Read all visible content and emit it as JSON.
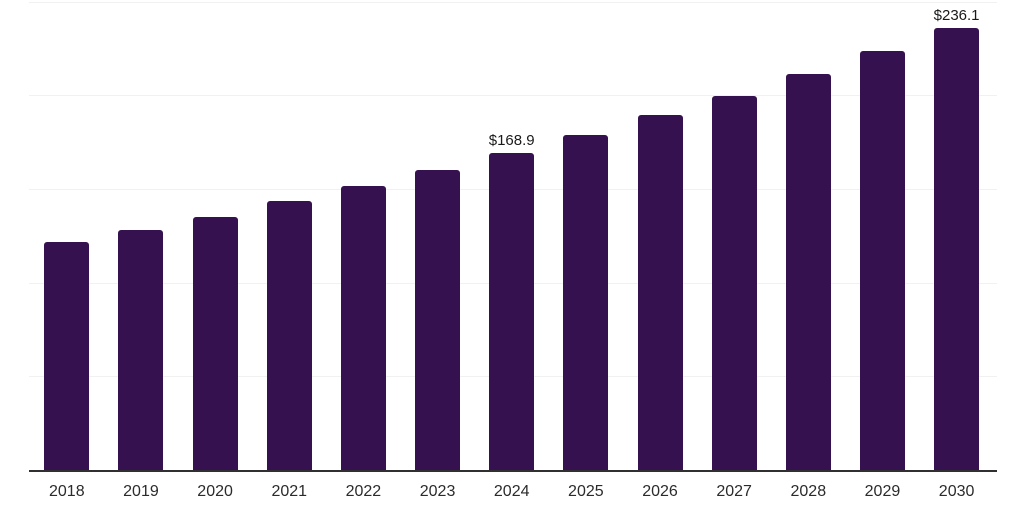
{
  "chart_data": {
    "type": "bar",
    "title": "",
    "xlabel": "",
    "ylabel": "",
    "categories": [
      "2018",
      "2019",
      "2020",
      "2021",
      "2022",
      "2023",
      "2024",
      "2025",
      "2026",
      "2027",
      "2028",
      "2029",
      "2030"
    ],
    "values": [
      121.5,
      128.0,
      135.2,
      143.3,
      151.7,
      160.2,
      168.9,
      178.9,
      189.4,
      199.8,
      211.5,
      223.6,
      236.1
    ],
    "data_labels": {
      "2024": "$168.9",
      "2030": "$236.1"
    },
    "ylim": [
      0,
      250
    ],
    "grid_step": 50,
    "grid": true,
    "legend": false,
    "colors": {
      "bar_fill": "#36114F",
      "gridline": "#f1f1f1",
      "axis_line": "#303030",
      "value_label_text": "#1a1a1a",
      "tick_label_text": "#2b2b2b",
      "background": "#ffffff"
    }
  }
}
